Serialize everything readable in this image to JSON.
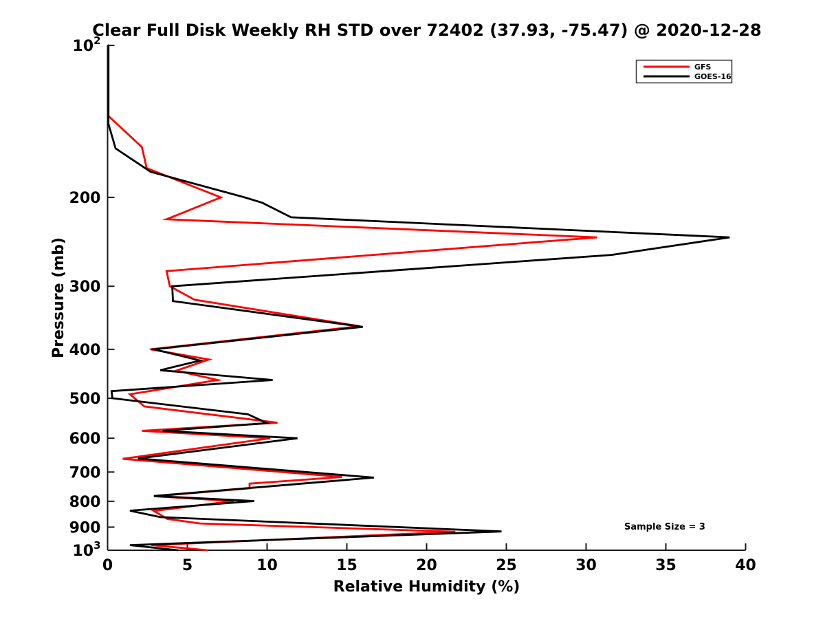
{
  "chart_data": {
    "type": "line",
    "title": "Clear Full Disk Weekly RH STD over 72402 (37.93, -75.47) @ 2020-12-28",
    "xlabel": "Relative Humidity (%)",
    "ylabel": "Pressure (mb)",
    "annotation": "Sample Size = 3",
    "legend_position": "top-right",
    "grid": false,
    "x_axis": {
      "min": 0,
      "max": 40,
      "ticks": [
        0,
        5,
        10,
        15,
        20,
        25,
        30,
        35,
        40
      ],
      "tick_labels": [
        "0",
        "5",
        "10",
        "15",
        "20",
        "25",
        "30",
        "35",
        "40"
      ]
    },
    "y_axis": {
      "scale": "log",
      "inverted": true,
      "min": 100,
      "max": 1000,
      "ticks": [
        100,
        200,
        300,
        400,
        500,
        600,
        700,
        800,
        900,
        1000
      ],
      "tick_labels": [
        {
          "base": "10",
          "exp": "2"
        },
        {
          "base": "200"
        },
        {
          "base": "300"
        },
        {
          "base": "400"
        },
        {
          "base": "500"
        },
        {
          "base": "600"
        },
        {
          "base": "700"
        },
        {
          "base": "800"
        },
        {
          "base": "900"
        },
        {
          "base": "10",
          "exp": "3"
        }
      ]
    },
    "series": [
      {
        "name": "GFS",
        "color": "#ff0000",
        "points_format": [
          "pressure_mb",
          "rh_std_percent"
        ],
        "points": [
          [
            100,
            0.05
          ],
          [
            138,
            0.05
          ],
          [
            159,
            2.15
          ],
          [
            175,
            2.45
          ],
          [
            200,
            7.1
          ],
          [
            221,
            3.7
          ],
          [
            240,
            30.7
          ],
          [
            280,
            3.7
          ],
          [
            300,
            3.9
          ],
          [
            319,
            5.45
          ],
          [
            360,
            15.8
          ],
          [
            400,
            2.7
          ],
          [
            419,
            6.35
          ],
          [
            441,
            4.3
          ],
          [
            460,
            6.9
          ],
          [
            491,
            1.4
          ],
          [
            519,
            2.3
          ],
          [
            559,
            10.65
          ],
          [
            580,
            2.15
          ],
          [
            600,
            10.2
          ],
          [
            659,
            0.95
          ],
          [
            716,
            14.7
          ],
          [
            738,
            8.9
          ],
          [
            754,
            8.9
          ],
          [
            782,
            2.95
          ],
          [
            799,
            7.9
          ],
          [
            836,
            2.9
          ],
          [
            867,
            3.75
          ],
          [
            885,
            5.8
          ],
          [
            919,
            21.8
          ],
          [
            977,
            2.75
          ],
          [
            1000,
            6.25
          ]
        ]
      },
      {
        "name": "GOES-16",
        "color": "#000000",
        "points_format": [
          "pressure_mb",
          "rh_std_percent"
        ],
        "points": [
          [
            100,
            0.05
          ],
          [
            143,
            0.05
          ],
          [
            160,
            0.5
          ],
          [
            178,
            2.7
          ],
          [
            200,
            8.6
          ],
          [
            205,
            9.7
          ],
          [
            219,
            11.5
          ],
          [
            240,
            39.0
          ],
          [
            260,
            31.6
          ],
          [
            300,
            4.05
          ],
          [
            321,
            4.1
          ],
          [
            361,
            16.0
          ],
          [
            400,
            2.9
          ],
          [
            421,
            5.8
          ],
          [
            440,
            3.3
          ],
          [
            460,
            10.35
          ],
          [
            484,
            0.25
          ],
          [
            500,
            0.3
          ],
          [
            538,
            8.8
          ],
          [
            560,
            10.0
          ],
          [
            580,
            3.45
          ],
          [
            600,
            11.9
          ],
          [
            658,
            1.9
          ],
          [
            718,
            16.7
          ],
          [
            781,
            2.9
          ],
          [
            799,
            9.2
          ],
          [
            835,
            1.4
          ],
          [
            860,
            3.3
          ],
          [
            918,
            24.7
          ],
          [
            977,
            1.4
          ],
          [
            1000,
            4.4
          ]
        ]
      }
    ],
    "colors": {
      "axis": "#1a1a1a",
      "background": "#ffffff",
      "gfs": "#ff0000",
      "goes16": "#000000"
    }
  }
}
